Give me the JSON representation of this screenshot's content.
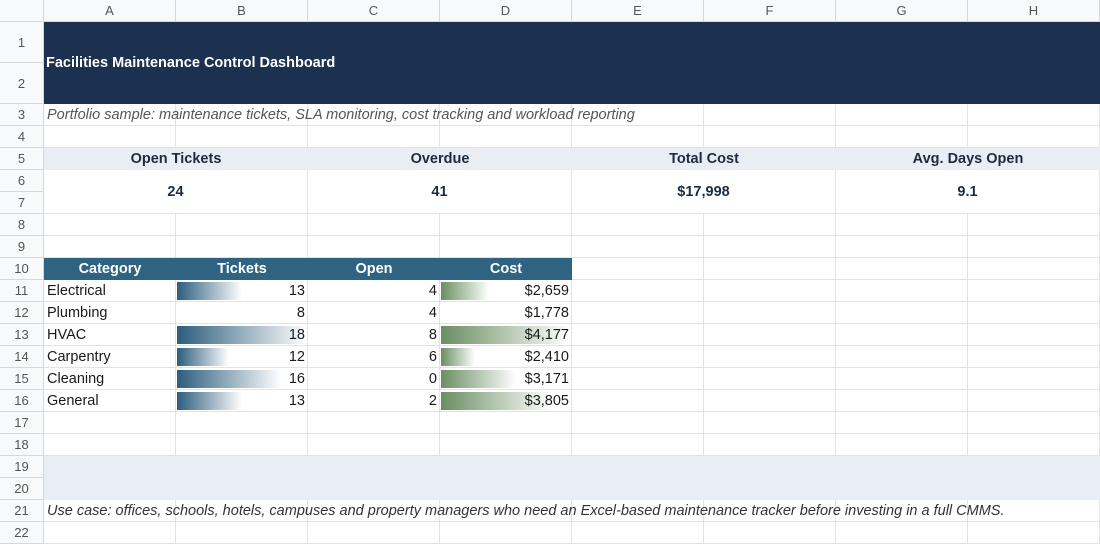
{
  "sheet": {
    "columns": [
      "A",
      "B",
      "C",
      "D",
      "E",
      "F",
      "G",
      "H"
    ],
    "rows": [
      1,
      2,
      3,
      4,
      5,
      6,
      7,
      8,
      9,
      10,
      11,
      12,
      13,
      14,
      15,
      16,
      17,
      18,
      19,
      20,
      21,
      22
    ],
    "title": "Facilities Maintenance Control Dashboard",
    "subtitle": "Portfolio sample: maintenance tickets, SLA monitoring, cost tracking and workload reporting",
    "kpis": [
      {
        "label": "Open Tickets",
        "value": 24
      },
      {
        "label": "Overdue",
        "value": 41
      },
      {
        "label": "Total Cost",
        "value": "$17,998"
      },
      {
        "label": "Avg. Days Open",
        "value": 9.1
      }
    ],
    "table": {
      "headers": [
        "Category",
        "Tickets",
        "Open",
        "Cost"
      ],
      "rows": [
        {
          "category": "Electrical",
          "tickets": 13,
          "open": 4,
          "cost": 2659,
          "cost_label": "$2,659"
        },
        {
          "category": "Plumbing",
          "tickets": 8,
          "open": 4,
          "cost": 1778,
          "cost_label": "$1,778"
        },
        {
          "category": "HVAC",
          "tickets": 18,
          "open": 8,
          "cost": 4177,
          "cost_label": "$4,177"
        },
        {
          "category": "Carpentry",
          "tickets": 12,
          "open": 6,
          "cost": 2410,
          "cost_label": "$2,410"
        },
        {
          "category": "Cleaning",
          "tickets": 16,
          "open": 0,
          "cost": 3171,
          "cost_label": "$3,171"
        },
        {
          "category": "General",
          "tickets": 13,
          "open": 2,
          "cost": 3805,
          "cost_label": "$3,805"
        }
      ]
    },
    "footer": "Use case: offices, schools, hotels, campuses and property managers who need an Excel-based maintenance tracker before investing in a full CMMS."
  }
}
